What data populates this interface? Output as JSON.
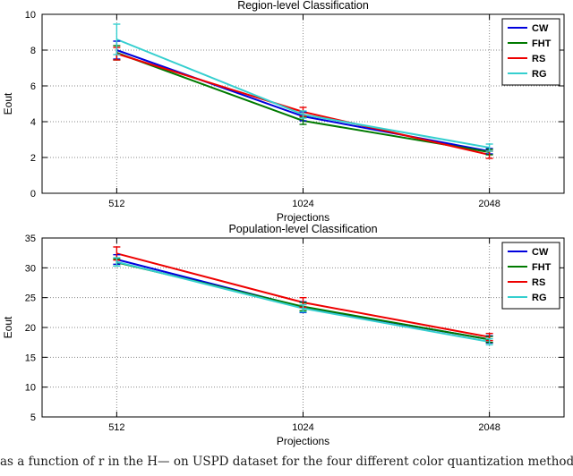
{
  "caption": "as a function of r in the H— on USPD dataset for the four different color quantization methods.",
  "colors": {
    "cw": "#0000dd",
    "fht": "#007a00",
    "rs": "#ee0000",
    "rg": "#35cfcf",
    "grid": "#8a8a8a",
    "axis": "#000000"
  },
  "chart_data": [
    {
      "type": "line",
      "title": "Region-level Classification",
      "xlabel": "Projections",
      "ylabel": "Eout",
      "x": [
        512,
        1024,
        2048
      ],
      "xticklabels": [
        "512",
        "1024",
        "2048"
      ],
      "ylim": [
        0,
        10
      ],
      "yticks": [
        0,
        2,
        4,
        6,
        8,
        10
      ],
      "grid": true,
      "legend_position": "top-right",
      "series": [
        {
          "name": "CW",
          "color": "#0000dd",
          "values": [
            8.0,
            4.3,
            2.35
          ],
          "errors": [
            0.5,
            0.25,
            0.15
          ]
        },
        {
          "name": "FHT",
          "color": "#007a00",
          "values": [
            7.85,
            4.05,
            2.3
          ],
          "errors": [
            0.4,
            0.2,
            0.15
          ]
        },
        {
          "name": "RS",
          "color": "#ee0000",
          "values": [
            7.8,
            4.55,
            2.15
          ],
          "errors": [
            0.35,
            0.25,
            0.2
          ]
        },
        {
          "name": "RG",
          "color": "#35cfcf",
          "values": [
            8.6,
            4.4,
            2.55
          ],
          "errors": [
            0.85,
            0.2,
            0.2
          ]
        }
      ]
    },
    {
      "type": "line",
      "title": "Population-level Classification",
      "xlabel": "Projections",
      "ylabel": "Eout",
      "x": [
        512,
        1024,
        2048
      ],
      "xticklabels": [
        "512",
        "1024",
        "2048"
      ],
      "ylim": [
        5,
        35
      ],
      "yticks": [
        5,
        10,
        15,
        20,
        25,
        30,
        35
      ],
      "grid": true,
      "legend_position": "top-right",
      "series": [
        {
          "name": "CW",
          "color": "#0000dd",
          "values": [
            31.4,
            23.4,
            18.0
          ],
          "errors": [
            0.8,
            0.9,
            0.6
          ]
        },
        {
          "name": "FHT",
          "color": "#007a00",
          "values": [
            30.9,
            23.5,
            18.0
          ],
          "errors": [
            0.6,
            0.7,
            0.5
          ]
        },
        {
          "name": "RS",
          "color": "#ee0000",
          "values": [
            32.4,
            24.2,
            18.4
          ],
          "errors": [
            1.1,
            0.8,
            0.6
          ]
        },
        {
          "name": "RG",
          "color": "#35cfcf",
          "values": [
            31.0,
            23.2,
            17.6
          ],
          "errors": [
            0.7,
            0.6,
            0.5
          ]
        }
      ]
    }
  ]
}
